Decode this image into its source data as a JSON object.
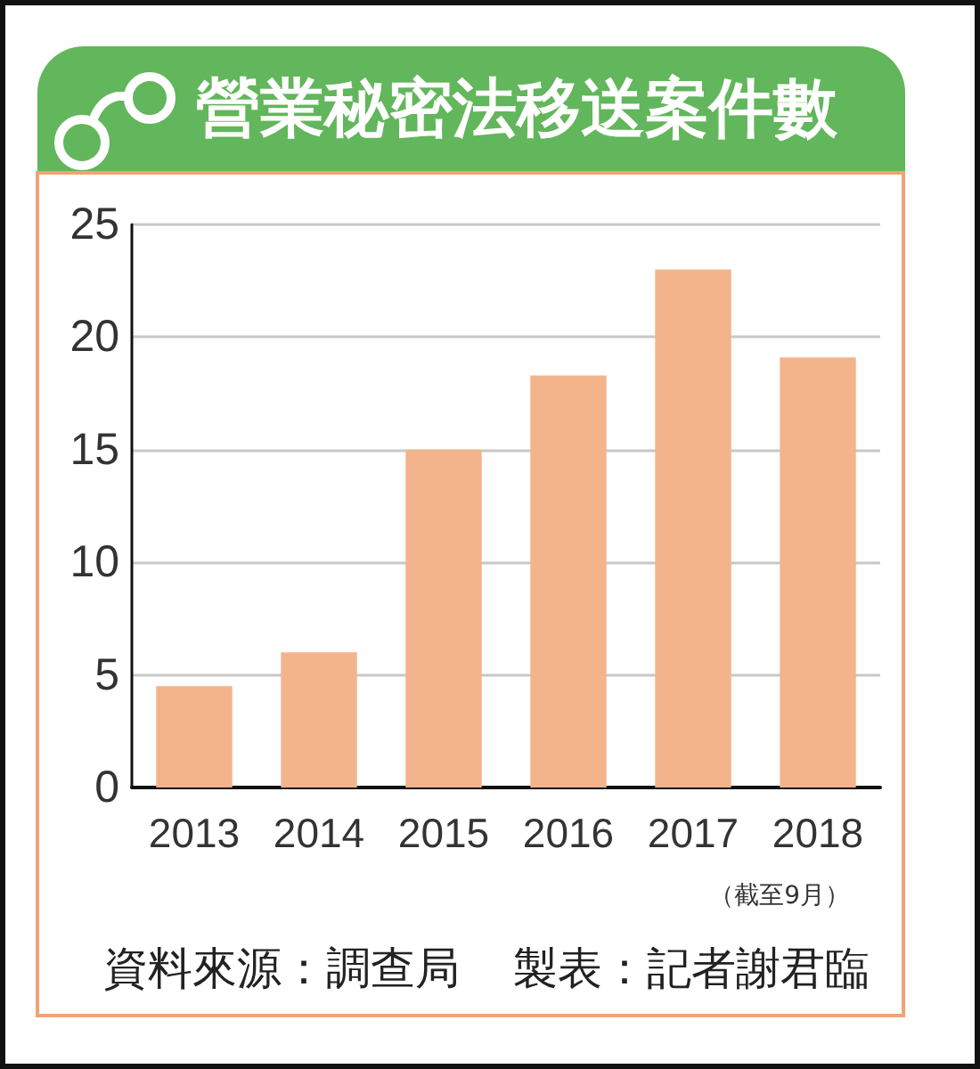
{
  "chart_data": {
    "type": "bar",
    "title": "營業秘密法移送案件數",
    "categories": [
      "2013",
      "2014",
      "2015",
      "2016",
      "2017",
      "2018"
    ],
    "values": [
      4.5,
      6,
      15,
      18.3,
      23,
      19.1
    ],
    "color": "#f4b48b",
    "ylim": [
      0,
      25
    ],
    "yticks": [
      0,
      5,
      10,
      15,
      20,
      25
    ],
    "grid": "y",
    "annotations": [
      "（截至9月）",
      "資料來源：調查局",
      "製表：記者謝君臨"
    ]
  }
}
